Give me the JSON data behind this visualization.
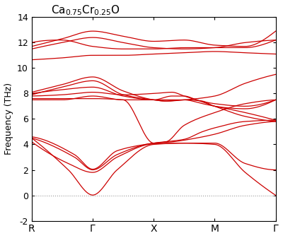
{
  "title": "Ca$_{0.75}$Cr$_{0.25}$O",
  "ylabel": "Frequency (THz)",
  "xtick_labels": [
    "R",
    "Γ",
    "X",
    "M",
    "Γ"
  ],
  "xtick_positions": [
    0,
    1,
    2,
    3,
    4
  ],
  "xlim": [
    0,
    4
  ],
  "ylim": [
    -2,
    14
  ],
  "yticks": [
    -2,
    0,
    2,
    4,
    6,
    8,
    10,
    12,
    14
  ],
  "line_color": "#cc0000",
  "dotted_line_color": "#999999",
  "background_color": "#ffffff",
  "figsize": [
    4.0,
    3.37
  ],
  "dpi": 100
}
